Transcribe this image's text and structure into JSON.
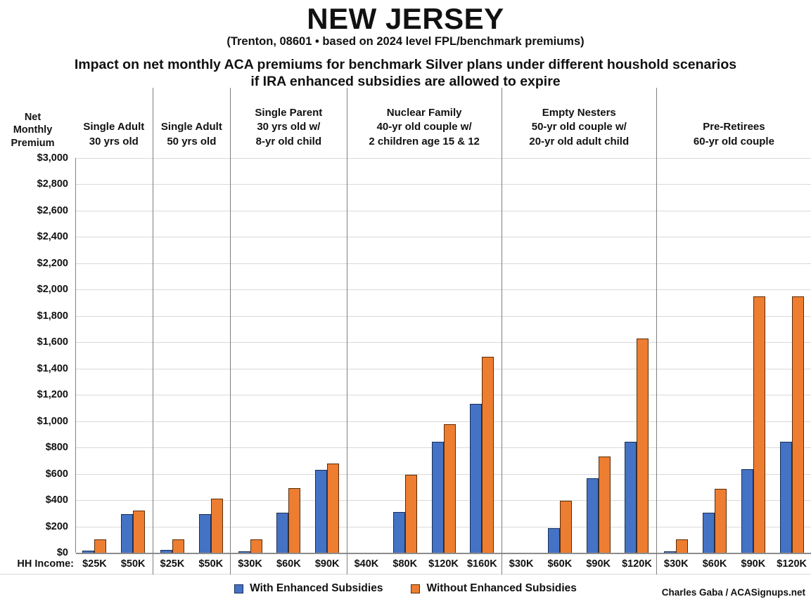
{
  "header": {
    "title": "NEW JERSEY",
    "subtitle": "(Trenton, 08601 • based on 2024 level FPL/benchmark premiums)",
    "headline_line1": "Impact on net monthly ACA premiums for benchmark Silver plans under different houshold scenarios",
    "headline_line2": "if IRA enhanced subsidies are allowed to expire"
  },
  "axis": {
    "y_title_lines": [
      "Net",
      "Monthly",
      "Premium"
    ],
    "x_title": "HH Income:"
  },
  "legend": [
    {
      "label": "With Enhanced Subsidies",
      "color": "#4472C4",
      "border": "#1b2f57"
    },
    {
      "label": "Without Enhanced Subsidies",
      "color": "#ED7D31",
      "border": "#5a2d08"
    }
  ],
  "credit": "Charles Gaba / ACASignups.net",
  "chart_data": {
    "type": "bar",
    "title": "Impact on net monthly ACA premiums for benchmark Silver plans under different houshold scenarios if IRA enhanced subsidies are allowed to expire",
    "ylabel": "Net Monthly Premium",
    "xlabel": "HH Income",
    "ylim": [
      0,
      3000
    ],
    "ytick_step": 200,
    "grid": true,
    "legend_position": "bottom",
    "series_names": [
      "With Enhanced Subsidies",
      "Without Enhanced Subsidies"
    ],
    "colors": {
      "with": "#4472C4",
      "without": "#ED7D31"
    },
    "groups": [
      {
        "label_lines": [
          "Single Adult",
          "30 yrs old"
        ],
        "categories": [
          "$25K",
          "$50K"
        ],
        "with": [
          15,
          295
        ],
        "without": [
          100,
          320
        ]
      },
      {
        "label_lines": [
          "Single Adult",
          "50 yrs old"
        ],
        "categories": [
          "$25K",
          "$50K"
        ],
        "with": [
          20,
          295
        ],
        "without": [
          100,
          410
        ]
      },
      {
        "label_lines": [
          "Single Parent",
          "30 yrs old w/",
          "8-yr old child"
        ],
        "categories": [
          "$30K",
          "$60K",
          "$90K"
        ],
        "with": [
          10,
          305,
          630
        ],
        "without": [
          100,
          490,
          680
        ]
      },
      {
        "label_lines": [
          "Nuclear Family",
          "40-yr old couple w/",
          "2 children age 15 & 12"
        ],
        "categories": [
          "$40K",
          "$80K",
          "$120K",
          "$160K"
        ],
        "with": [
          0,
          310,
          845,
          1130
        ],
        "without": [
          0,
          590,
          975,
          1490
        ]
      },
      {
        "label_lines": [
          "Empty Nesters",
          "50-yr old couple w/",
          "20-yr old adult child"
        ],
        "categories": [
          "$30K",
          "$60K",
          "$90K",
          "$120K"
        ],
        "with": [
          0,
          185,
          565,
          845
        ],
        "without": [
          0,
          395,
          730,
          1630
        ]
      },
      {
        "label_lines": [
          "Pre-Retirees",
          "60-yr old couple"
        ],
        "categories": [
          "$30K",
          "$60K",
          "$90K",
          "$120K"
        ],
        "with": [
          10,
          305,
          635,
          845
        ],
        "without": [
          100,
          485,
          1950,
          1950
        ]
      }
    ]
  }
}
